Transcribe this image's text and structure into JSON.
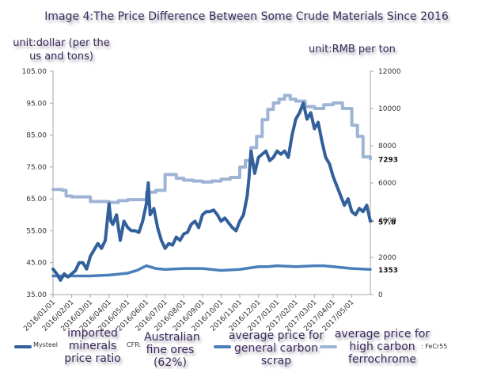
{
  "title": "Image 4:The Price Difference Between Some Crude Materials Since 2016",
  "left_unit": "unit:dollar (per the us and tons)",
  "right_unit": "unit:RMB per ton",
  "colors": {
    "iron_ore": "#31609a",
    "scrap": "#4a7ebb",
    "ferrochrome": "#9fb4d4",
    "axis": "#a6a6a6"
  },
  "chart_data": {
    "type": "line",
    "title": "Image 4:The Price Difference Between Some Crude Materials Since 2016",
    "ylabel": "unit:dollar (per the us and tons)",
    "y2label": "unit:RMB per ton",
    "ylim": [
      35,
      105
    ],
    "y2lim": [
      0,
      12000
    ],
    "yticks": [
      "105.00",
      "95.00",
      "85.00",
      "75.00",
      "65.00",
      "55.00",
      "45.00",
      "35.00"
    ],
    "y2ticks": [
      "12000",
      "10000",
      "8000",
      "6000",
      "4000",
      "2000",
      "0"
    ],
    "xticks": [
      "2016/01/01",
      "2016/02/01",
      "2016/03/01",
      "2016/04/01",
      "2016/05/01",
      "2016/06/01",
      "2016/07/01",
      "2016/08/01",
      "2016/09/01",
      "2016/10/01",
      "2016/11/01",
      "2016/12/01",
      "2017/01/01",
      "2017/02/01",
      "2017/03/01",
      "2017/04/01",
      "2017/05/01"
    ],
    "grid": false,
    "legend_position": "bottom",
    "series": [
      {
        "name": "Mysteel imported minerals price ratio CFR: Australian fine ores (62%)",
        "axis": "left",
        "end_label": "57.8",
        "x": [
          0,
          0.2,
          0.4,
          0.6,
          0.8,
          1.0,
          1.2,
          1.4,
          1.6,
          1.8,
          2.0,
          2.2,
          2.4,
          2.6,
          2.8,
          3.0,
          3.1,
          3.2,
          3.4,
          3.6,
          3.8,
          4.0,
          4.2,
          4.4,
          4.6,
          4.8,
          5.0,
          5.1,
          5.2,
          5.4,
          5.6,
          5.8,
          6.0,
          6.2,
          6.4,
          6.6,
          6.8,
          7.0,
          7.2,
          7.4,
          7.6,
          7.8,
          8.0,
          8.2,
          8.4,
          8.6,
          8.8,
          9.0,
          9.2,
          9.4,
          9.6,
          9.8,
          10.0,
          10.2,
          10.4,
          10.5,
          10.6,
          10.8,
          11.0,
          11.2,
          11.4,
          11.6,
          11.8,
          12.0,
          12.2,
          12.4,
          12.6,
          12.8,
          13.0,
          13.2,
          13.4,
          13.6,
          13.8,
          14.0,
          14.2,
          14.4,
          14.6,
          14.8,
          15.0,
          15.2,
          15.4,
          15.6,
          15.8,
          16.0,
          16.2,
          16.4,
          16.6,
          16.8,
          17.0
        ],
        "values": [
          43,
          41.5,
          39.5,
          41.5,
          40.5,
          41.5,
          42.5,
          45,
          45,
          43,
          47,
          49,
          51,
          49.5,
          52,
          63.5,
          58,
          57,
          60,
          52,
          58,
          56,
          55,
          55,
          54.5,
          58,
          63.5,
          70,
          60,
          62,
          56,
          52,
          49.5,
          51,
          50.5,
          53,
          52,
          54,
          54.5,
          57,
          58,
          56,
          60,
          61,
          61,
          61.5,
          60,
          58,
          59,
          57.5,
          56,
          55,
          58,
          60,
          66,
          72,
          80,
          73,
          78,
          79,
          80,
          77,
          78,
          80,
          79,
          80,
          78,
          85,
          90,
          92,
          95,
          90,
          92,
          87,
          89,
          83,
          78,
          76,
          72,
          69,
          66,
          63,
          65,
          61,
          60,
          62,
          61,
          63,
          58
        ]
      },
      {
        "name": "average price for general carbon scrap",
        "axis": "right",
        "end_label": "1353",
        "x": [
          0,
          1,
          2,
          3,
          4,
          4.5,
          5,
          5.5,
          6,
          7,
          8,
          9,
          10,
          11,
          11.5,
          12,
          13,
          14,
          14.5,
          15,
          16,
          17
        ],
        "values": [
          1000,
          1000,
          1000,
          1050,
          1150,
          1300,
          1550,
          1400,
          1350,
          1400,
          1400,
          1300,
          1350,
          1500,
          1500,
          1550,
          1500,
          1550,
          1550,
          1500,
          1400,
          1353
        ]
      },
      {
        "name": "average price for high carbon ferrochrome : FeCr55",
        "axis": "right",
        "end_label": "7293",
        "x": [
          0,
          0.5,
          0.7,
          1,
          1.5,
          2,
          2.5,
          3,
          3.5,
          4,
          4.5,
          5,
          5.5,
          6,
          6.3,
          6.6,
          7,
          7.5,
          8,
          8.5,
          9,
          9.5,
          10,
          10.3,
          10.6,
          10.9,
          11.2,
          11.5,
          11.8,
          12.1,
          12.4,
          12.7,
          13,
          13.5,
          14,
          14.5,
          15,
          15.5,
          16,
          16.3,
          16.6,
          17
        ],
        "values": [
          5650,
          5600,
          5300,
          5250,
          5250,
          5000,
          5000,
          4950,
          5050,
          5100,
          5100,
          5500,
          5600,
          6450,
          6450,
          6250,
          6150,
          6100,
          6050,
          6100,
          6200,
          6300,
          6850,
          7200,
          7900,
          8500,
          9400,
          9950,
          10300,
          10500,
          10700,
          10500,
          10400,
          10100,
          10000,
          10200,
          10300,
          10000,
          9100,
          8500,
          7400,
          7293
        ]
      }
    ]
  },
  "legend": {
    "item1_prefix": "Mysteel",
    "item1_main": "imported minerals price ratio",
    "item1_cfr": "CFR:",
    "item1_suffix": "Australian fine ores (62%)",
    "item2": "average price for general carbon scrap",
    "item3": "average price for high carbon ferrochrome",
    "item3_suffix": ": FeCr55"
  }
}
